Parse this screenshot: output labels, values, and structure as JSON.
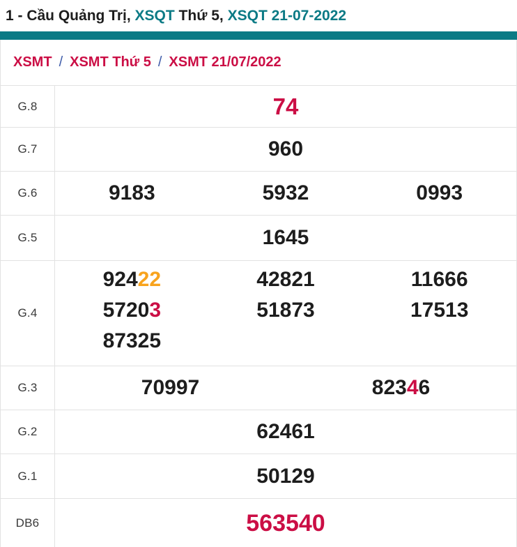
{
  "title": {
    "parts": [
      {
        "text": "1 - Cầu Quảng Trị, ",
        "color": "dark",
        "link": false
      },
      {
        "text": "XSQT",
        "color": "teal",
        "link": true
      },
      {
        "text": " Thứ 5, ",
        "color": "dark",
        "link": false
      },
      {
        "text": "XSQT 21-07-2022",
        "color": "teal",
        "link": true
      }
    ]
  },
  "breadcrumb": {
    "separator": "/",
    "items": [
      "XSMT",
      "XSMT Thứ 5",
      "XSMT 21/07/2022"
    ]
  },
  "colors": {
    "accent_teal": "#0b7a85",
    "highlight_red": "#cb0e45",
    "highlight_orange": "#f8a31d"
  },
  "table": {
    "rows": [
      {
        "label": "G.8",
        "size": "xl",
        "columns": [
          [
            [
              {
                "t": "74",
                "c": "red"
              }
            ]
          ]
        ]
      },
      {
        "label": "G.7",
        "columns": [
          [
            [
              {
                "t": "960"
              }
            ]
          ]
        ]
      },
      {
        "label": "G.6",
        "columns": [
          [
            [
              {
                "t": "9183"
              }
            ]
          ],
          [
            [
              {
                "t": "5932"
              }
            ]
          ],
          [
            [
              {
                "t": "0993"
              }
            ]
          ]
        ]
      },
      {
        "label": "G.5",
        "columns": [
          [
            [
              {
                "t": "1645"
              }
            ]
          ]
        ]
      },
      {
        "label": "G.4",
        "columns": [
          [
            [
              {
                "t": "924"
              },
              {
                "t": "22",
                "c": "orange"
              }
            ],
            [
              {
                "t": "5720"
              },
              {
                "t": "3",
                "c": "red"
              }
            ],
            [
              {
                "t": "87325"
              }
            ]
          ],
          [
            [
              {
                "t": "42821"
              }
            ],
            [
              {
                "t": "51873"
              }
            ]
          ],
          [
            [
              {
                "t": "11666"
              }
            ],
            [
              {
                "t": "17513"
              }
            ]
          ]
        ]
      },
      {
        "label": "G.3",
        "columns": [
          [
            [
              {
                "t": "70997"
              }
            ]
          ],
          [
            [
              {
                "t": "823"
              },
              {
                "t": "4",
                "c": "red"
              },
              {
                "t": "6"
              }
            ]
          ]
        ]
      },
      {
        "label": "G.2",
        "columns": [
          [
            [
              {
                "t": "62461"
              }
            ]
          ]
        ]
      },
      {
        "label": "G.1",
        "columns": [
          [
            [
              {
                "t": "50129"
              }
            ]
          ]
        ]
      },
      {
        "label": "DB6",
        "size": "xl",
        "columns": [
          [
            [
              {
                "t": "563540",
                "c": "red"
              }
            ]
          ]
        ]
      }
    ]
  }
}
